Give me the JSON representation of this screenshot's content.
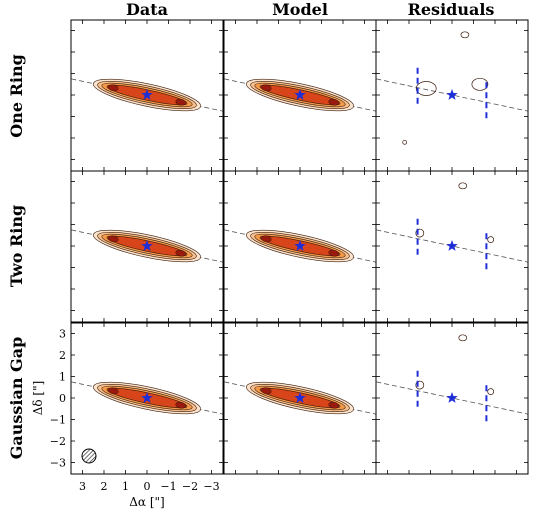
{
  "figure": {
    "column_titles": [
      "Data",
      "Model",
      "Residuals"
    ],
    "row_titles": [
      "One Ring",
      "Two Ring",
      "Gaussian Gap"
    ],
    "xlabel": "Δα [\"]",
    "ylabel": "Δδ [\"]",
    "colors": {
      "star": "#1f2fd8",
      "dashes": "#1f2fd8",
      "contour": "#3a1a0a",
      "fill_outer": "#fbe3cc",
      "fill_mid": "#f29a4a",
      "fill_inner": "#d9451a",
      "fill_peak": "#9b1a10"
    }
  },
  "chart_data": {
    "type": "image-grid",
    "panels": [
      {
        "row": "One Ring",
        "column": "Data"
      },
      {
        "row": "One Ring",
        "column": "Model"
      },
      {
        "row": "One Ring",
        "column": "Residuals"
      },
      {
        "row": "Two Ring",
        "column": "Data"
      },
      {
        "row": "Two Ring",
        "column": "Model"
      },
      {
        "row": "Two Ring",
        "column": "Residuals"
      },
      {
        "row": "Gaussian Gap",
        "column": "Data"
      },
      {
        "row": "Gaussian Gap",
        "column": "Model"
      },
      {
        "row": "Gaussian Gap",
        "column": "Residuals"
      }
    ],
    "x_ticks": [
      "3",
      "2",
      "1",
      "0",
      "−1",
      "−2",
      "−3"
    ],
    "y_ticks": [
      "3",
      "2",
      "1",
      "0",
      "−1",
      "−2",
      "−3"
    ],
    "xlim": [
      3.5,
      -3.5
    ],
    "ylim": [
      -3.5,
      3.5
    ],
    "xlabel": "Δα [\"]",
    "ylabel": "Δδ [\"]",
    "disk": {
      "position_angle_deg": 78,
      "center": [
        0,
        0
      ]
    },
    "gap_markers_residuals": [
      1.6,
      -1.6
    ]
  }
}
